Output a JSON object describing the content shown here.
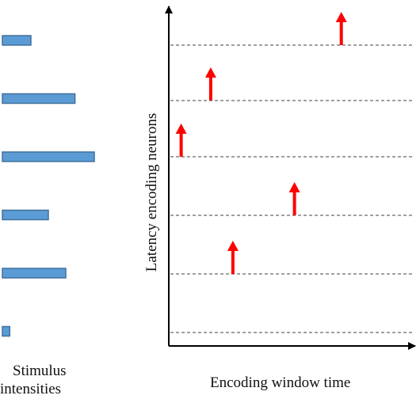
{
  "labels": {
    "stimulus_line1": "Stimulus",
    "stimulus_line2": "intensities",
    "x_axis": "Encoding window time",
    "y_axis": "Latency encoding neurons"
  },
  "stimulus_intensities": [
    0.31,
    0.79,
    1.0,
    0.5,
    0.69,
    0.08
  ],
  "spike_times": [
    0.7,
    0.17,
    0.05,
    0.51,
    0.26
  ],
  "colors": {
    "bar_fill": "#5b9bd5",
    "bar_stroke": "#41719c",
    "spike": "#ff0000",
    "axis": "#000000",
    "neuron_line": "#404040"
  }
}
